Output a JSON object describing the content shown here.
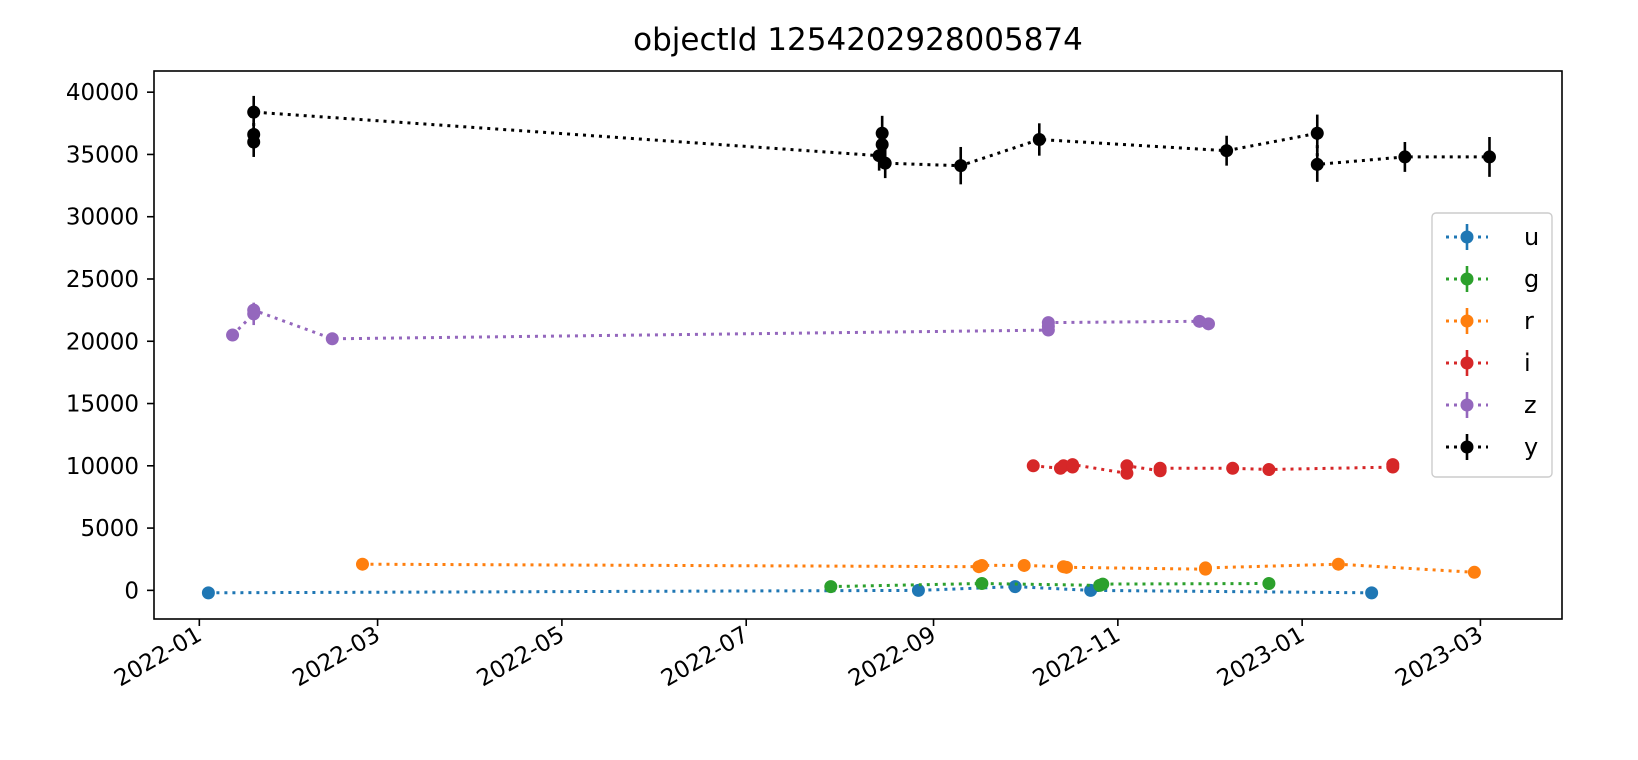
{
  "chart_data": {
    "type": "scatter",
    "title": "objectId 1254202928005874",
    "xlabel": "",
    "ylabel": "",
    "x_axis": "date",
    "xlim": [
      "2021-12-17",
      "2023-03-28"
    ],
    "ylim": [
      -2300,
      41700
    ],
    "x_ticks": [
      "2022-01",
      "2022-03",
      "2022-05",
      "2022-07",
      "2022-09",
      "2022-11",
      "2023-01",
      "2023-03"
    ],
    "y_ticks": [
      0,
      5000,
      10000,
      15000,
      20000,
      25000,
      30000,
      35000,
      40000
    ],
    "grid": false,
    "legend_position": "right",
    "series": [
      {
        "name": "u",
        "color": "#1f77b4",
        "points": [
          {
            "x": "2022-01-04",
            "y": -200,
            "err": 100
          },
          {
            "x": "2022-08-27",
            "y": 0,
            "err": 100
          },
          {
            "x": "2022-09-28",
            "y": 300,
            "err": 100
          },
          {
            "x": "2022-10-23",
            "y": 0,
            "err": 100
          },
          {
            "x": "2023-01-24",
            "y": -200,
            "err": 100
          }
        ]
      },
      {
        "name": "g",
        "color": "#2ca02c",
        "points": [
          {
            "x": "2022-07-29",
            "y": 300,
            "err": 100
          },
          {
            "x": "2022-09-17",
            "y": 550,
            "err": 100
          },
          {
            "x": "2022-10-26",
            "y": 400,
            "err": 100
          },
          {
            "x": "2022-10-27",
            "y": 500,
            "err": 100
          },
          {
            "x": "2022-12-21",
            "y": 550,
            "err": 100
          }
        ]
      },
      {
        "name": "r",
        "color": "#ff7f0e",
        "points": [
          {
            "x": "2022-02-24",
            "y": 2100,
            "err": 100
          },
          {
            "x": "2022-09-16",
            "y": 1900,
            "err": 100
          },
          {
            "x": "2022-09-17",
            "y": 2000,
            "err": 100
          },
          {
            "x": "2022-10-01",
            "y": 2000,
            "err": 100
          },
          {
            "x": "2022-10-14",
            "y": 1900,
            "err": 100
          },
          {
            "x": "2022-10-15",
            "y": 1850,
            "err": 100
          },
          {
            "x": "2022-11-30",
            "y": 1700,
            "err": 100
          },
          {
            "x": "2022-11-30",
            "y": 1800,
            "err": 100
          },
          {
            "x": "2023-01-13",
            "y": 2100,
            "err": 100
          },
          {
            "x": "2023-02-27",
            "y": 1450,
            "err": 100
          }
        ]
      },
      {
        "name": "i",
        "color": "#d62728",
        "points": [
          {
            "x": "2022-10-04",
            "y": 10000,
            "err": 100
          },
          {
            "x": "2022-10-13",
            "y": 9800,
            "err": 100
          },
          {
            "x": "2022-10-14",
            "y": 10000,
            "err": 100
          },
          {
            "x": "2022-10-17",
            "y": 9900,
            "err": 100
          },
          {
            "x": "2022-10-17",
            "y": 10100,
            "err": 100
          },
          {
            "x": "2022-11-04",
            "y": 9400,
            "err": 100
          },
          {
            "x": "2022-11-04",
            "y": 10000,
            "err": 100
          },
          {
            "x": "2022-11-15",
            "y": 9600,
            "err": 100
          },
          {
            "x": "2022-11-15",
            "y": 9800,
            "err": 100
          },
          {
            "x": "2022-12-09",
            "y": 9800,
            "err": 100
          },
          {
            "x": "2022-12-21",
            "y": 9700,
            "err": 100
          },
          {
            "x": "2023-01-31",
            "y": 9900,
            "err": 100
          },
          {
            "x": "2023-01-31",
            "y": 10100,
            "err": 100
          }
        ]
      },
      {
        "name": "z",
        "color": "#9467bd",
        "points": [
          {
            "x": "2022-01-12",
            "y": 20500,
            "err": 300
          },
          {
            "x": "2022-01-19",
            "y": 22200,
            "err": 900
          },
          {
            "x": "2022-01-19",
            "y": 22500,
            "err": 500
          },
          {
            "x": "2022-02-14",
            "y": 20200,
            "err": 400
          },
          {
            "x": "2022-10-09",
            "y": 20900,
            "err": 300
          },
          {
            "x": "2022-10-09",
            "y": 21200,
            "err": 300
          },
          {
            "x": "2022-10-09",
            "y": 21500,
            "err": 300
          },
          {
            "x": "2022-11-28",
            "y": 21600,
            "err": 300
          },
          {
            "x": "2022-12-01",
            "y": 21400,
            "err": 300
          }
        ]
      },
      {
        "name": "y",
        "color": "#000000",
        "points": [
          {
            "x": "2022-01-19",
            "y": 36000,
            "err": 1200
          },
          {
            "x": "2022-01-19",
            "y": 36600,
            "err": 1200
          },
          {
            "x": "2022-01-19",
            "y": 38400,
            "err": 1300
          },
          {
            "x": "2022-08-14",
            "y": 34900,
            "err": 1200
          },
          {
            "x": "2022-08-15",
            "y": 35800,
            "err": 1200
          },
          {
            "x": "2022-08-15",
            "y": 36700,
            "err": 1400
          },
          {
            "x": "2022-08-16",
            "y": 34300,
            "err": 1200
          },
          {
            "x": "2022-09-10",
            "y": 34100,
            "err": 1500
          },
          {
            "x": "2022-10-06",
            "y": 36200,
            "err": 1300
          },
          {
            "x": "2022-12-07",
            "y": 35300,
            "err": 1200
          },
          {
            "x": "2023-01-06",
            "y": 36700,
            "err": 1500
          },
          {
            "x": "2023-01-06",
            "y": 34200,
            "err": 1400
          },
          {
            "x": "2023-02-04",
            "y": 34800,
            "err": 1200
          },
          {
            "x": "2023-03-04",
            "y": 34800,
            "err": 1600
          }
        ]
      }
    ]
  }
}
